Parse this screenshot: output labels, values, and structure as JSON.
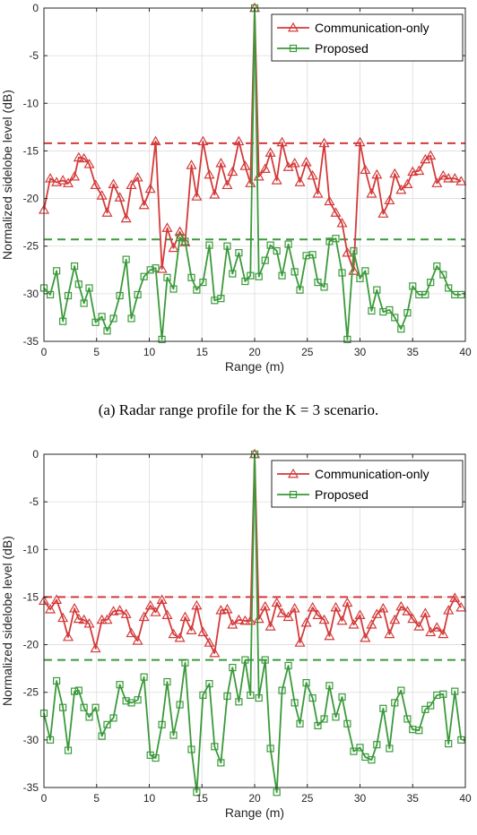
{
  "colors": {
    "red": "#d43a3a",
    "green": "#3a9a3a",
    "grid": "#dcdcdc",
    "axis": "#262626"
  },
  "captions": [
    "(a)  Radar range profile for the K = 3 scenario."
  ],
  "chart_data": [
    {
      "type": "line",
      "xlabel": "Range (m)",
      "ylabel": "Normalized sidelobe level (dB)",
      "xlim": [
        0,
        40
      ],
      "ylim": [
        -35,
        0
      ],
      "xticks": [
        0,
        5,
        10,
        15,
        20,
        25,
        30,
        35,
        40
      ],
      "yticks": [
        0,
        -5,
        -10,
        -15,
        -20,
        -25,
        -30,
        -35
      ],
      "grid": true,
      "legend_position": "top-right",
      "series": [
        {
          "name": "Communication-only",
          "color": "#d43a3a",
          "marker": "triangle",
          "x": [
            0,
            0.6,
            1.2,
            1.8,
            2.3,
            2.9,
            3.3,
            3.8,
            4.3,
            4.9,
            5.5,
            6,
            6.6,
            7.2,
            7.8,
            8.3,
            8.9,
            9.5,
            10.1,
            10.6,
            11.2,
            11.7,
            12.3,
            12.9,
            13.4,
            14,
            14.5,
            15.1,
            15.7,
            16.2,
            16.8,
            17.4,
            17.9,
            18.5,
            19.1,
            19.6,
            20,
            20.4,
            21,
            21.5,
            22.1,
            22.6,
            23.2,
            23.8,
            24.3,
            24.9,
            25.5,
            26,
            26.6,
            27.1,
            27.7,
            28.3,
            28.8,
            29.4,
            30,
            30.5,
            31.1,
            31.6,
            32.2,
            32.8,
            33.3,
            33.9,
            34.5,
            35,
            35.6,
            36.2,
            36.7,
            37.3,
            37.9,
            38.4,
            39,
            39.6
          ],
          "values": [
            -21.2,
            -17.9,
            -18.3,
            -18.1,
            -18.4,
            -17.7,
            -15.7,
            -15.8,
            -16.4,
            -18.6,
            -19.7,
            -21.5,
            -18.5,
            -19.9,
            -22.1,
            -18.6,
            -17.8,
            -20.7,
            -19,
            -14,
            -27.4,
            -23.1,
            -25.2,
            -23.5,
            -24.6,
            -16.5,
            -19.8,
            -14,
            -17.5,
            -19.6,
            -16.3,
            -18.6,
            -17.2,
            -14,
            -16.6,
            -18.4,
            0,
            -17.7,
            -16.9,
            -15.2,
            -18.1,
            -14.1,
            -16.7,
            -16.3,
            -18.3,
            -16.2,
            -17.6,
            -19.5,
            -14.2,
            -20.3,
            -21.5,
            -22.6,
            -25.7,
            -27.6,
            -14.1,
            -17,
            -19.5,
            -17.5,
            -21.6,
            -20.2,
            -17.4,
            -19.1,
            -18.5,
            -17.2,
            -17.1,
            -15.9,
            -15.5,
            -18.4,
            -17.6,
            -17.9,
            -17.9,
            -18.2
          ]
        },
        {
          "name": "Proposed",
          "color": "#3a9a3a",
          "marker": "square",
          "x": [
            0,
            0.6,
            1.2,
            1.8,
            2.3,
            2.9,
            3.3,
            3.8,
            4.3,
            4.9,
            5.5,
            6,
            6.6,
            7.2,
            7.8,
            8.3,
            8.9,
            9.5,
            10.1,
            10.6,
            11.2,
            11.7,
            12.3,
            12.9,
            13.4,
            14,
            14.5,
            15.1,
            15.7,
            16.2,
            16.8,
            17.4,
            17.9,
            18.5,
            19.1,
            19.6,
            20,
            20.4,
            21,
            21.5,
            22.1,
            22.6,
            23.2,
            23.8,
            24.3,
            24.9,
            25.5,
            26,
            26.6,
            27.1,
            27.7,
            28.3,
            28.8,
            29.4,
            30,
            30.5,
            31.1,
            31.6,
            32.2,
            32.8,
            33.3,
            33.9,
            34.5,
            35,
            35.6,
            36.2,
            36.7,
            37.3,
            37.9,
            38.4,
            39,
            39.6
          ],
          "values": [
            -29.4,
            -30.1,
            -27.6,
            -32.9,
            -30.2,
            -27.1,
            -29.0,
            -31.0,
            -29.4,
            -33.0,
            -32.4,
            -33.9,
            -32.6,
            -30.2,
            -26.4,
            -32.6,
            -30.1,
            -28.2,
            -27.5,
            -27.3,
            -34.8,
            -28.3,
            -29.5,
            -24.1,
            -24.5,
            -28.3,
            -29.6,
            -28.8,
            -24.9,
            -30.7,
            -30.5,
            -25.0,
            -27.9,
            -25.7,
            -28.7,
            -28.1,
            0,
            -28.2,
            -26.5,
            -24.9,
            -25.5,
            -28.1,
            -24.8,
            -27.7,
            -29.6,
            -26.0,
            -25.9,
            -28.8,
            -29.3,
            -24.5,
            -24.2,
            -27.8,
            -34.8,
            -25.5,
            -28.4,
            -27.6,
            -31.8,
            -29.6,
            -31.9,
            -31.7,
            -32.5,
            -33.7,
            -32.0,
            -29.2,
            -30.1,
            -30.1,
            -28.8,
            -27.1,
            -28.0,
            -29.4,
            -30.1,
            -30.1
          ]
        }
      ],
      "reference_lines": [
        {
          "series": "Communication-only",
          "y": -14.2,
          "style": "dashed"
        },
        {
          "series": "Proposed",
          "y": -24.3,
          "style": "dashed"
        }
      ]
    },
    {
      "type": "line",
      "xlabel": "Range (m)",
      "ylabel": "Normalized sidelobe level (dB)",
      "xlim": [
        0,
        40
      ],
      "ylim": [
        -35,
        0
      ],
      "xticks": [
        0,
        5,
        10,
        15,
        20,
        25,
        30,
        35,
        40
      ],
      "yticks": [
        0,
        -5,
        -10,
        -15,
        -20,
        -25,
        -30,
        -35
      ],
      "grid": true,
      "legend_position": "top-right",
      "series": [
        {
          "name": "Communication-only",
          "color": "#d43a3a",
          "marker": "triangle",
          "x": [
            0,
            0.6,
            1.2,
            1.8,
            2.3,
            2.9,
            3.3,
            3.8,
            4.3,
            4.9,
            5.5,
            6,
            6.6,
            7.2,
            7.8,
            8.3,
            8.9,
            9.5,
            10.1,
            10.6,
            11.2,
            11.7,
            12.3,
            12.9,
            13.4,
            14,
            14.5,
            15.1,
            15.7,
            16.2,
            16.8,
            17.4,
            17.9,
            18.5,
            19.1,
            19.6,
            20,
            20.4,
            21,
            21.5,
            22.1,
            22.6,
            23.2,
            23.8,
            24.3,
            24.9,
            25.5,
            26,
            26.6,
            27.1,
            27.7,
            28.3,
            28.8,
            29.4,
            30,
            30.5,
            31.1,
            31.6,
            32.2,
            32.8,
            33.3,
            33.9,
            34.5,
            35,
            35.6,
            36.2,
            36.7,
            37.3,
            37.9,
            38.4,
            39,
            39.6
          ],
          "values": [
            -15.4,
            -16.3,
            -15.3,
            -17.2,
            -19.2,
            -16.2,
            -17.3,
            -17.4,
            -17.8,
            -20.4,
            -17.4,
            -17.4,
            -16.5,
            -16.4,
            -16.8,
            -18.8,
            -19.6,
            -17.1,
            -15.9,
            -16.6,
            -15.3,
            -16.9,
            -18.9,
            -19.3,
            -17.1,
            -18.5,
            -15.9,
            -18.7,
            -19.8,
            -20.9,
            -16.4,
            -16.3,
            -17.9,
            -17.4,
            -17.5,
            -17.5,
            0,
            -17.3,
            -16.0,
            -18.1,
            -15.6,
            -16.7,
            -17.1,
            -16.2,
            -19.8,
            -17.7,
            -16.1,
            -16.9,
            -17.4,
            -19.1,
            -16.1,
            -17.5,
            -15.6,
            -17.9,
            -16.9,
            -19.3,
            -17.9,
            -16.8,
            -16.2,
            -18.9,
            -17.4,
            -16.0,
            -16.5,
            -17.3,
            -18.1,
            -16.7,
            -18.7,
            -18.2,
            -18.9,
            -16.4,
            -15.1,
            -16.1
          ]
        },
        {
          "name": "Proposed",
          "color": "#3a9a3a",
          "marker": "square",
          "x": [
            0,
            0.6,
            1.2,
            1.8,
            2.3,
            2.9,
            3.3,
            3.8,
            4.3,
            4.9,
            5.5,
            6,
            6.6,
            7.2,
            7.8,
            8.3,
            8.9,
            9.5,
            10.1,
            10.6,
            11.2,
            11.7,
            12.3,
            12.9,
            13.4,
            14,
            14.5,
            15.1,
            15.7,
            16.2,
            16.8,
            17.4,
            17.9,
            18.5,
            19.1,
            19.6,
            20,
            20.4,
            21,
            21.5,
            22.1,
            22.6,
            23.2,
            23.8,
            24.3,
            24.9,
            25.5,
            26,
            26.6,
            27.1,
            27.7,
            28.3,
            28.8,
            29.4,
            30,
            30.5,
            31.1,
            31.6,
            32.2,
            32.8,
            33.3,
            33.9,
            34.5,
            35,
            35.6,
            36.2,
            36.7,
            37.3,
            37.9,
            38.4,
            39,
            39.6
          ],
          "values": [
            -27.2,
            -30.0,
            -23.8,
            -26.6,
            -31.1,
            -24.9,
            -24.8,
            -26.6,
            -27.6,
            -26.6,
            -29.6,
            -28.4,
            -27.7,
            -24.2,
            -25.9,
            -26.1,
            -25.8,
            -23.4,
            -31.6,
            -31.9,
            -28.4,
            -23.9,
            -29.5,
            -26.3,
            -21.9,
            -31.0,
            -35.5,
            -25.3,
            -24.1,
            -30.7,
            -32.4,
            -25.4,
            -22.4,
            -26.0,
            -21.6,
            -25.3,
            0,
            -25.6,
            -21.6,
            -30.9,
            -35.5,
            -24.8,
            -22.2,
            -26.1,
            -28.3,
            -24.0,
            -25.6,
            -28.5,
            -27.8,
            -24.3,
            -27.6,
            -25.5,
            -28.3,
            -31.2,
            -30.8,
            -31.8,
            -32.1,
            -30.5,
            -26.7,
            -30.9,
            -26.1,
            -24.8,
            -27.8,
            -28.9,
            -29.0,
            -26.8,
            -26.4,
            -25.3,
            -25.2,
            -30.4,
            -24.9,
            -30.0
          ]
        }
      ],
      "reference_lines": [
        {
          "series": "Communication-only",
          "y": -15.0,
          "style": "dashed"
        },
        {
          "series": "Proposed",
          "y": -21.6,
          "style": "dashed"
        }
      ]
    }
  ]
}
